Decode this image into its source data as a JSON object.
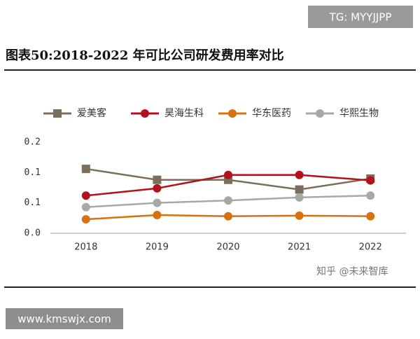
{
  "chart_data": {
    "type": "line",
    "title": "图表50:2018-2022 年可比公司研发费用率对比",
    "categories": [
      "2018",
      "2019",
      "2020",
      "2021",
      "2022"
    ],
    "series": [
      {
        "name": "爱美客",
        "color": "#7b6f5b",
        "marker": "square",
        "values": [
          0.106,
          0.088,
          0.088,
          0.072,
          0.09
        ]
      },
      {
        "name": "昊海生科",
        "color": "#b3121c",
        "marker": "circle",
        "values": [
          0.062,
          0.074,
          0.096,
          0.096,
          0.087
        ]
      },
      {
        "name": "华东医药",
        "color": "#d8710f",
        "marker": "circle",
        "values": [
          0.023,
          0.03,
          0.028,
          0.029,
          0.028
        ]
      },
      {
        "name": "华熙生物",
        "color": "#a9a9a3",
        "marker": "circle",
        "values": [
          0.043,
          0.05,
          0.054,
          0.059,
          0.062
        ]
      }
    ],
    "ylim": [
      0,
      0.15
    ],
    "yticks": [
      {
        "value": 0,
        "label": "0.0"
      },
      {
        "value": 0.05,
        "label": "0.1"
      },
      {
        "value": 0.1,
        "label": "0.1"
      },
      {
        "value": 0.15,
        "label": "0.2"
      }
    ],
    "grid": false,
    "legend": "top",
    "watermarks": [
      "TG: MYYJJPP",
      "知乎 @未来智库",
      "www.kmswjx.com"
    ]
  }
}
